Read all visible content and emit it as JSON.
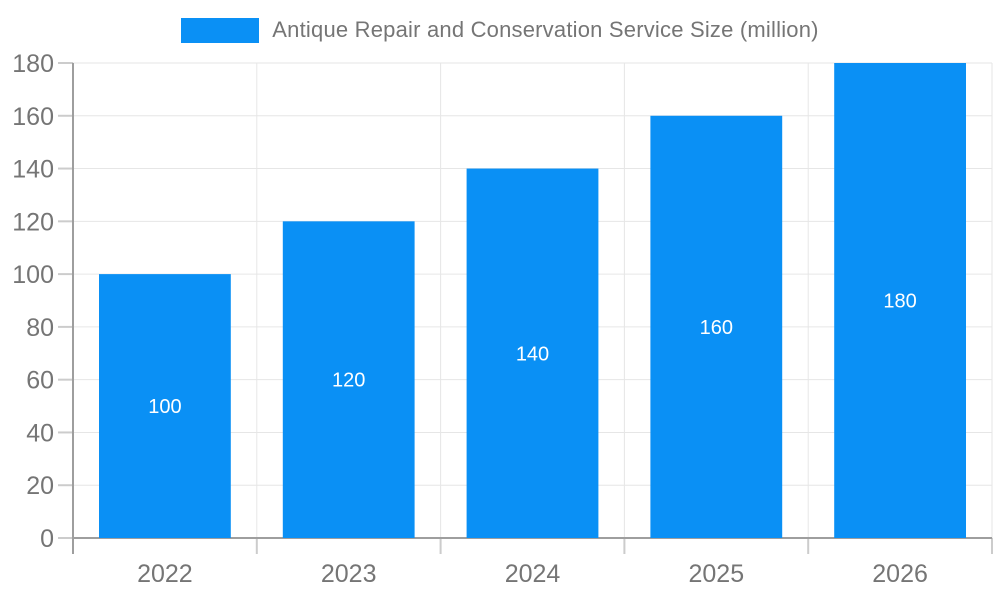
{
  "legend": {
    "label": "Antique Repair and Conservation Service Size (million)"
  },
  "colors": {
    "bar": "#0a90f5",
    "bar_label": "#ffffff",
    "gridline": "#e6e6e6",
    "axis_line": "#9e9e9e",
    "tick": "#cccccc",
    "axis_text": "#757575",
    "background": "#ffffff"
  },
  "chart_data": {
    "type": "bar",
    "title": "Antique Repair and Conservation Service Size (million)",
    "categories": [
      "2022",
      "2023",
      "2024",
      "2025",
      "2026"
    ],
    "values": [
      100,
      120,
      140,
      160,
      180
    ],
    "series": [
      {
        "name": "Antique Repair and Conservation Service Size (million)",
        "values": [
          100,
          120,
          140,
          160,
          180
        ]
      }
    ],
    "xlabel": "",
    "ylabel": "",
    "ylim": [
      0,
      180
    ],
    "ytick_step": 20,
    "yticks": [
      0,
      20,
      40,
      60,
      80,
      100,
      120,
      140,
      160,
      180
    ],
    "grid": true,
    "legend_position": "top",
    "data_labels": "inside-center-white"
  }
}
